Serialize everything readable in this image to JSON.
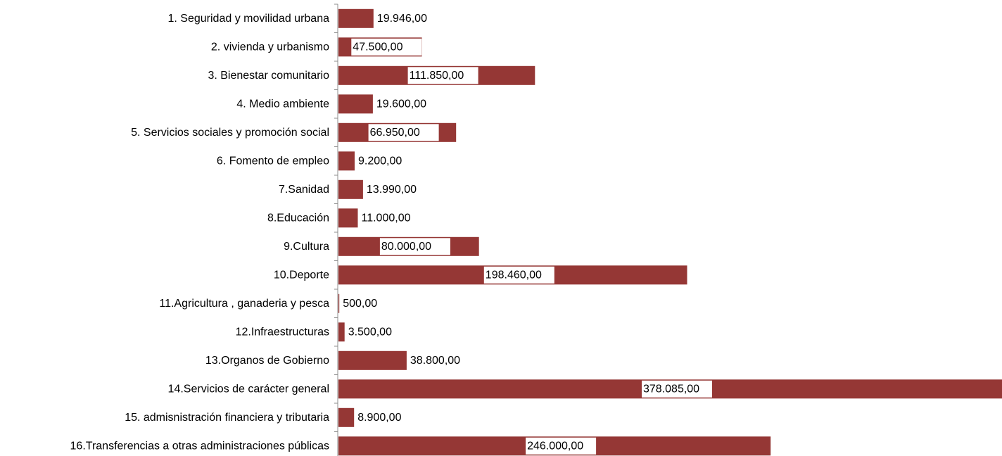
{
  "chart_data": {
    "type": "bar",
    "orientation": "horizontal",
    "title": "",
    "xlabel": "",
    "ylabel": "",
    "bar_color": "#953735",
    "categories": [
      "1. Seguridad y movilidad urbana",
      "2. vivienda y urbanismo",
      "3. Bienestar comunitario",
      "4. Medio ambiente",
      "5. Servicios sociales y promoción social",
      "6. Fomento de empleo",
      "7.Sanidad",
      "8.Educación",
      "9.Cultura",
      "10.Deporte",
      "11.Agricultura , ganaderia y pesca",
      "12.Infraestructuras",
      "13.Organos de Gobierno",
      "14.Servicios de carácter general",
      "15. admisnistración financiera y tributaria",
      "16.Transferencias a otras administraciones públicas"
    ],
    "values": [
      19946,
      47500,
      111850,
      19600,
      66950,
      9200,
      13990,
      11000,
      80000,
      198460,
      500,
      3500,
      38800,
      378085,
      8900,
      246000
    ],
    "value_labels": [
      "19.946,00",
      "47.500,00",
      "111.850,00",
      "19.600,00",
      "66.950,00",
      "9.200,00",
      "13.990,00",
      "11.000,00",
      "80.000,00",
      "198.460,00",
      "500,00",
      "3.500,00",
      "38.800,00",
      "378.085,00",
      "8.900,00",
      "246.000,00"
    ],
    "xlim": [
      0,
      378085
    ],
    "grid": false,
    "legend": "none"
  }
}
